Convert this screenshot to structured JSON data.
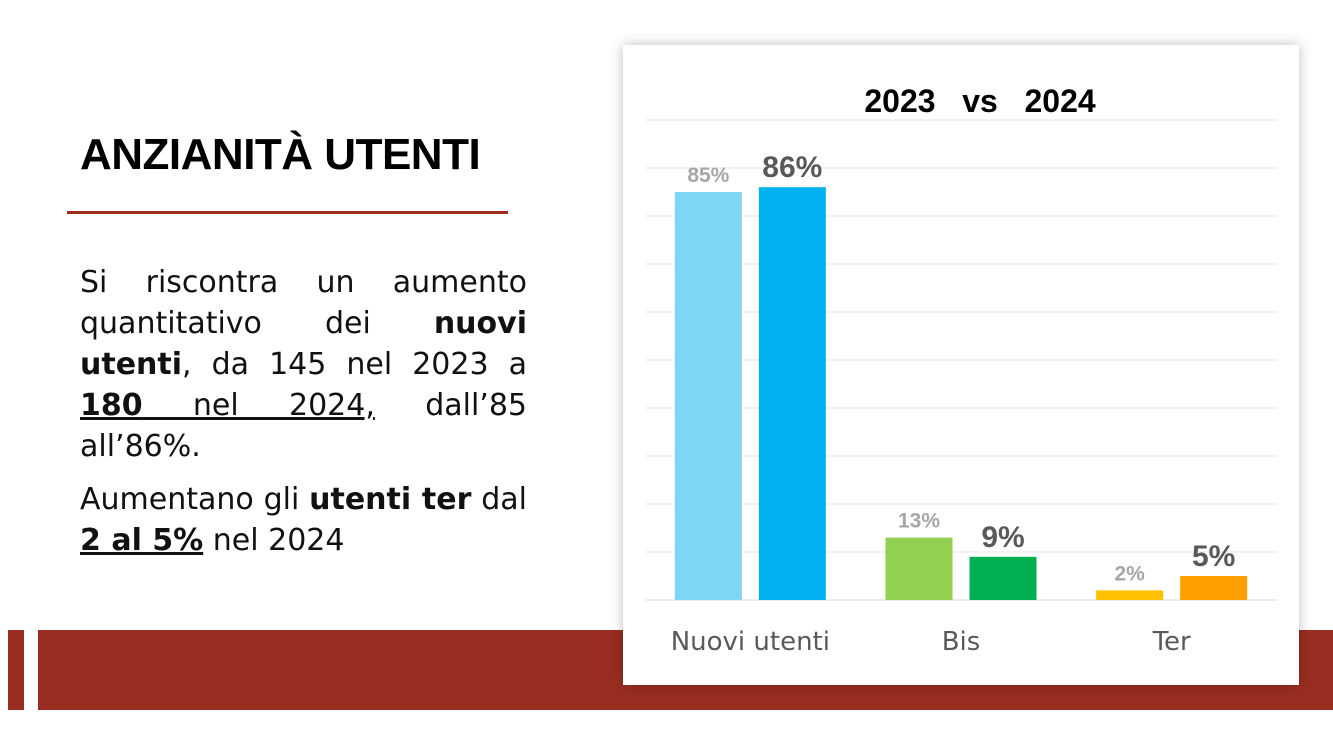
{
  "slide": {
    "title": "ANZIANITÀ UTENTI",
    "paragraph1": {
      "t1": "Si riscontra un aumento quantitativo dei ",
      "b1": "nuovi utenti",
      "t2": ", da 145 nel 2023 a ",
      "u1": "180",
      "u2": " nel 2024,",
      "t3": " dall’85 all’86%."
    },
    "paragraph2": {
      "t1": "Aumentano gli ",
      "b1": "utenti ter",
      "t2": " dal ",
      "u1": "2 al 5%",
      "t3": " nel 2024"
    }
  },
  "colors": {
    "accent": "#992d22",
    "rule": "#9e2a20",
    "gridline": "#e6e6e6",
    "label_2023": "#a6a6a6",
    "label_2024": "#595959",
    "category_label": "#595959"
  },
  "chart_data": {
    "type": "bar",
    "title": "2023   vs   2024",
    "categories": [
      "Nuovi utenti",
      "Bis",
      "Ter"
    ],
    "series": [
      {
        "name": "2023",
        "values": [
          85,
          13,
          2
        ],
        "labels": [
          "85%",
          "13%",
          "2%"
        ],
        "colors": [
          "#7fd6f4",
          "#92d050",
          "#ffc000"
        ]
      },
      {
        "name": "2024",
        "values": [
          86,
          9,
          5
        ],
        "labels": [
          "86%",
          "9%",
          "5%"
        ],
        "colors": [
          "#00b0f0",
          "#00b050",
          "#ffa000"
        ]
      }
    ],
    "ylim": [
      0,
      100
    ],
    "grid": true,
    "legend": "none"
  }
}
